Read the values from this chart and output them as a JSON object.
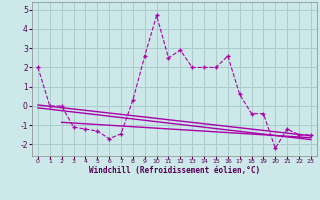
{
  "xlabel": "Windchill (Refroidissement éolien,°C)",
  "x_values": [
    0,
    1,
    2,
    3,
    4,
    5,
    6,
    7,
    8,
    9,
    10,
    11,
    12,
    13,
    14,
    15,
    16,
    17,
    18,
    19,
    20,
    21,
    22,
    23
  ],
  "y_main": [
    2.0,
    0.0,
    0.0,
    -1.1,
    -1.2,
    -1.3,
    -1.7,
    -1.45,
    0.3,
    2.6,
    4.7,
    2.5,
    2.9,
    2.0,
    2.0,
    2.0,
    2.6,
    0.6,
    -0.4,
    -0.4,
    -2.2,
    -1.2,
    -1.5,
    -1.5
  ],
  "trend1_x": [
    0,
    23
  ],
  "trend1_y": [
    0.05,
    -1.55
  ],
  "trend2_x": [
    0,
    23
  ],
  "trend2_y": [
    -0.1,
    -1.75
  ],
  "trend3_x": [
    2,
    23
  ],
  "trend3_y": [
    -0.85,
    -1.65
  ],
  "line_color": "#aa00aa",
  "bg_color": "#cce8e8",
  "grid_color": "#aacccc",
  "ylim": [
    -2.6,
    5.4
  ],
  "xlim": [
    -0.5,
    23.5
  ],
  "yticks": [
    -2,
    -1,
    0,
    1,
    2,
    3,
    4,
    5
  ]
}
